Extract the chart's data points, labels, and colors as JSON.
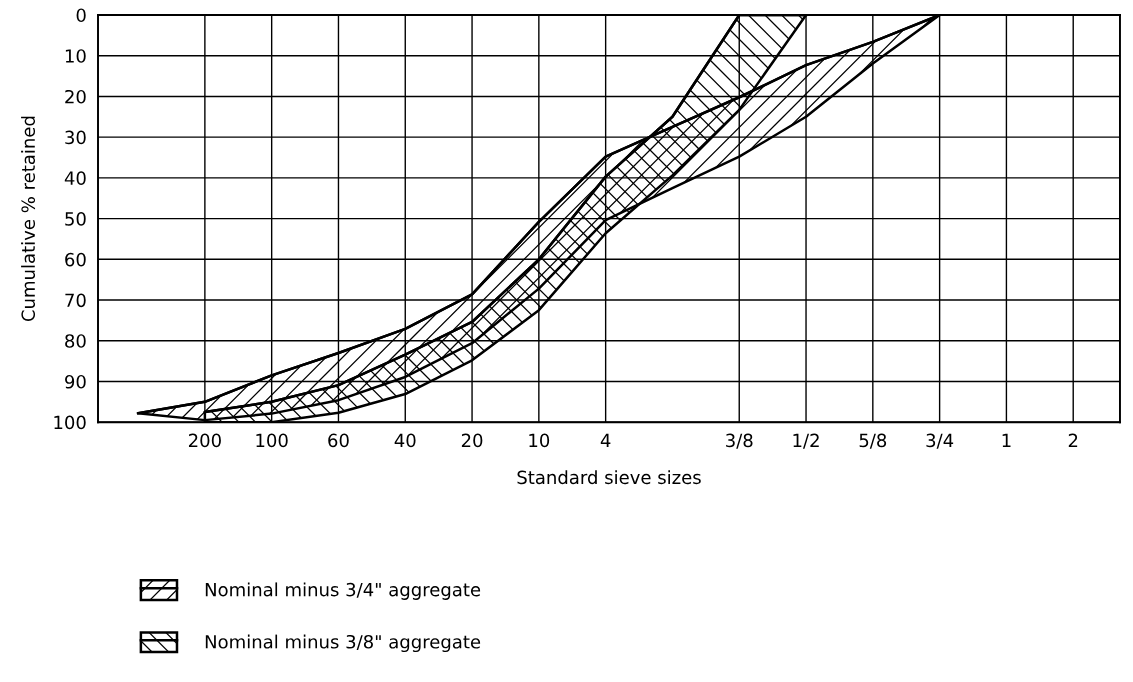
{
  "chart_data": {
    "type": "line",
    "xlabel": "Standard sieve sizes",
    "ylabel": "Cumulative % retained",
    "categories": [
      null,
      "200",
      "100",
      "60",
      "40",
      "20",
      "10",
      "4",
      null,
      "3/8",
      "1/2",
      "5/8",
      "3/4",
      "1",
      "2"
    ],
    "ylim": [
      100,
      0
    ],
    "yticks": [
      0,
      10,
      20,
      30,
      40,
      50,
      60,
      70,
      80,
      90,
      100
    ],
    "grid": true,
    "legend": "bottom",
    "series": [
      {
        "name": "Nominal minus 3/4\" aggregate",
        "color": "#000000",
        "values": [
          97.8,
          95.0,
          88.5,
          83.0,
          77.1,
          68.6,
          50.8,
          34.8,
          27.5,
          20.2,
          12.3,
          6.6,
          0,
          null,
          null
        ],
        "lower": [
          97.8,
          95.0,
          88.5,
          83.0,
          77.1,
          68.6,
          50.8,
          34.8,
          27.5,
          20.2,
          12.3,
          6.6,
          0,
          null,
          null
        ],
        "upper": [
          97.8,
          99.5,
          97.9,
          94.6,
          88.9,
          80.6,
          67.2,
          50.4,
          42.5,
          34.8,
          25.0,
          11.9,
          0,
          null,
          null
        ]
      },
      {
        "name": "Nominal minus 3/8\" aggregate",
        "color": "#000000",
        "values": [
          null,
          97.5,
          95.0,
          90.9,
          83.4,
          75.4,
          60.0,
          39.7,
          25.0,
          0,
          0,
          null,
          null,
          null,
          null
        ],
        "lower": [
          null,
          97.5,
          95.0,
          90.9,
          83.4,
          75.4,
          60.0,
          39.7,
          25.0,
          0,
          0,
          null,
          null,
          null,
          null
        ],
        "upper": [
          null,
          100,
          100,
          97.7,
          93.1,
          84.8,
          72.5,
          53.6,
          39.4,
          23.3,
          0,
          null,
          null,
          null,
          null
        ]
      }
    ]
  }
}
